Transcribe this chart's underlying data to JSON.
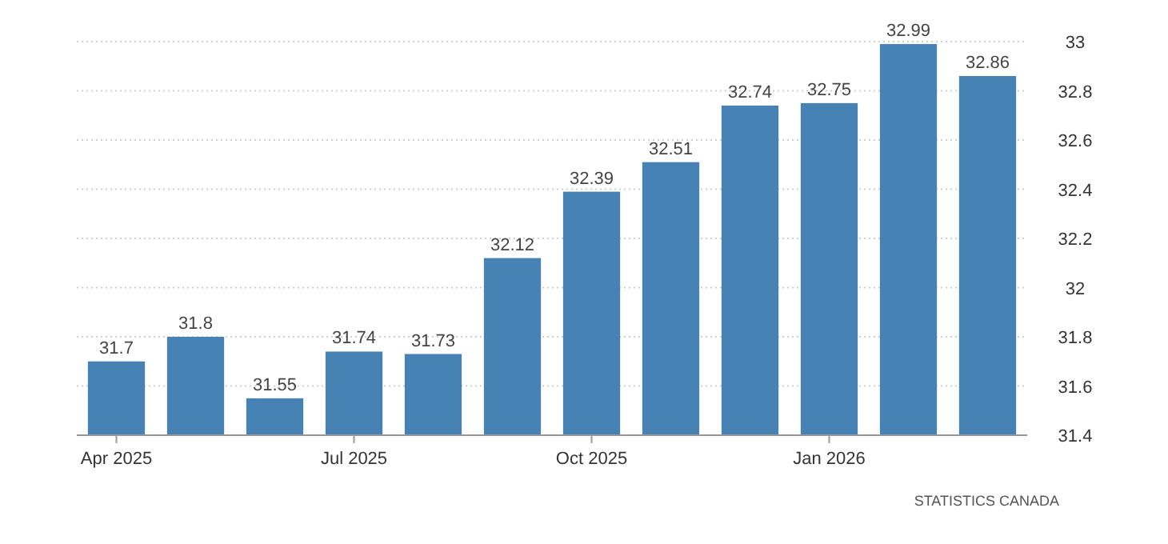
{
  "chart_data": {
    "type": "bar",
    "categories": [
      "Apr 2025",
      null,
      null,
      "Jul 2025",
      null,
      null,
      "Oct 2025",
      null,
      null,
      "Jan 2026",
      null,
      null
    ],
    "values": [
      31.7,
      31.8,
      31.55,
      31.74,
      31.73,
      32.12,
      32.39,
      32.51,
      32.74,
      32.75,
      32.99,
      32.86
    ],
    "color": "#4682b4",
    "ylim": [
      31.4,
      33
    ],
    "yticks": [
      31.4,
      31.6,
      31.8,
      32,
      32.2,
      32.4,
      32.6,
      32.8,
      33
    ],
    "grid": "y",
    "data_labels": true,
    "annotations": [
      "STATISTICS CANADA"
    ]
  }
}
